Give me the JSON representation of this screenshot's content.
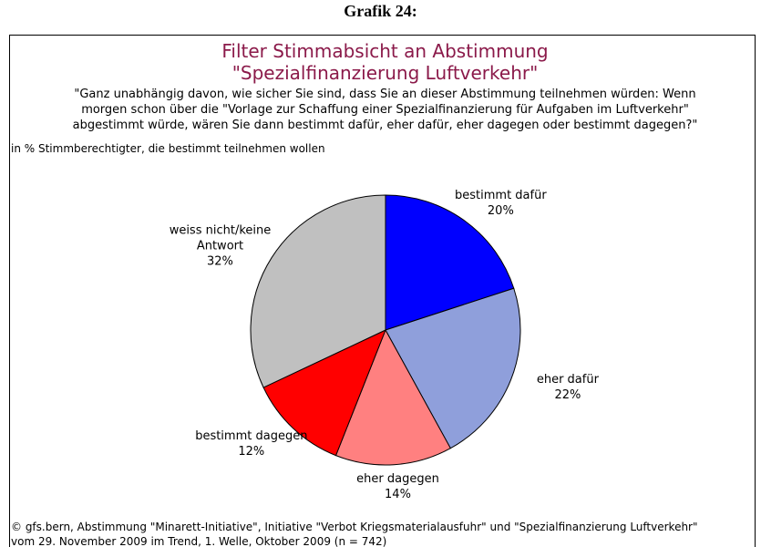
{
  "heading": "Grafik 24:",
  "chart_data": {
    "type": "pie",
    "title": [
      "Filter Stimmabsicht an Abstimmung",
      "\"Spezialfinanzierung Luftverkehr\""
    ],
    "question": [
      "\"Ganz unabhängig davon, wie sicher Sie sind, dass Sie an dieser Abstimmung teilnehmen würden: Wenn",
      "morgen schon über die \"Vorlage zur Schaffung einer Spezialfinanzierung für Aufgaben im Luftverkehr\"",
      "abgestimmt würde, wären Sie dann bestimmt dafür, eher dafür, eher dagegen oder bestimmt dagegen?\""
    ],
    "subtitle": "in % Stimmberechtigter, die bestimmt teilnehmen wollen",
    "categories": [
      "bestimmt dafür",
      "eher dafür",
      "eher dagegen",
      "bestimmt dagegen",
      "weiss nicht/keine Antwort"
    ],
    "values": [
      20,
      22,
      14,
      12,
      32
    ],
    "value_labels": [
      "20%",
      "22%",
      "14%",
      "12%",
      "32%"
    ],
    "colors": [
      "#0000ff",
      "#8f9fdb",
      "#ff8080",
      "#ff0000",
      "#c0c0c0"
    ]
  },
  "footer": [
    "© gfs.bern, Abstimmung \"Minarett-Initiative\", Initiative \"Verbot Kriegsmaterialausfuhr\" und \"Spezialfinanzierung Luftverkehr\"",
    "vom 29. November 2009 im Trend, 1. Welle, Oktober 2009 (n = 742)"
  ]
}
